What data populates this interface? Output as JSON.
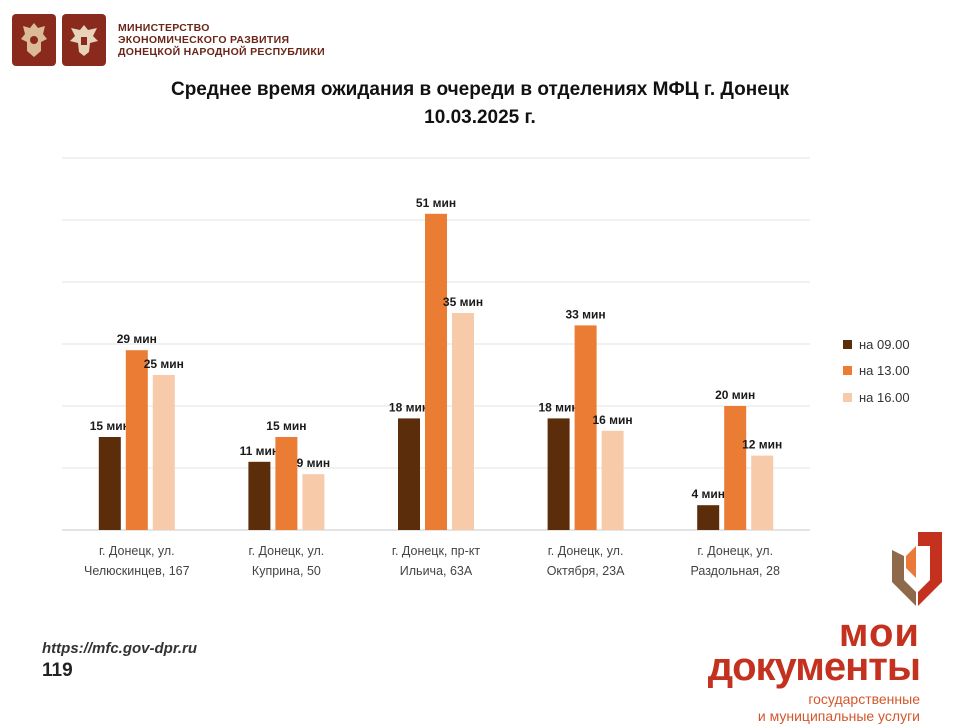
{
  "header": {
    "ministry_lines": [
      "МИНИСТЕРСТВО",
      "ЭКОНОМИЧЕСКОГО РАЗВИТИЯ",
      "ДОНЕЦКОЙ НАРОДНОЙ РЕСПУБЛИКИ"
    ],
    "emblem_icons": [
      "coat-of-arms-icon",
      "eagle-emblem-icon"
    ]
  },
  "title": {
    "line1": "Среднее время ожидания в очереди в отделениях МФЦ г. Донецк",
    "line2": "10.03.2025 г."
  },
  "chart_data": {
    "type": "bar",
    "title": "Среднее время ожидания в очереди в отделениях МФЦ г. Донецк 10.03.2025 г.",
    "categories": [
      [
        "г. Донецк, ул.",
        "Челюскинцев, 167"
      ],
      [
        "г. Донецк, ул.",
        "Куприна, 50"
      ],
      [
        "г. Донецк, пр-кт",
        "Ильича, 63А"
      ],
      [
        "г. Донецк, ул.",
        "Октября, 23А"
      ],
      [
        "г. Донецк, ул.",
        "Раздольная, 28"
      ]
    ],
    "series": [
      {
        "name": "на 09.00",
        "color": "#5c2d0a",
        "values": [
          15,
          11,
          18,
          18,
          4
        ]
      },
      {
        "name": "на 13.00",
        "color": "#ea7d33",
        "values": [
          29,
          15,
          51,
          33,
          20
        ]
      },
      {
        "name": "на 16.00",
        "color": "#f7cbaa",
        "values": [
          25,
          9,
          35,
          16,
          12
        ]
      }
    ],
    "value_suffix": " мин",
    "ylim": [
      0,
      60
    ],
    "grid": true,
    "y_axis_labels_visible": false,
    "legend_position": "right"
  },
  "footer": {
    "url": "https://mfc.gov-dpr.ru",
    "page_number": "119"
  },
  "brand": {
    "line1": "мои",
    "line2": "документы",
    "sub_line1": "государственные",
    "sub_line2": "и муниципальные услуги",
    "logo_icon": "moi-dokumenty-logo-icon",
    "color": "#c4311e"
  }
}
